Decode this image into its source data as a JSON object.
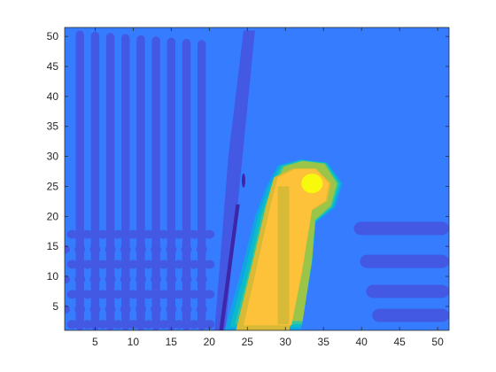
{
  "chart_data": {
    "type": "heatmap",
    "style": "filled-contour",
    "colormap": "parula",
    "grid": false,
    "legend": "none",
    "xlim": [
      1,
      51.5
    ],
    "ylim": [
      1,
      51.5
    ],
    "x_ticks": [
      5,
      10,
      15,
      20,
      25,
      30,
      35,
      40,
      45,
      50
    ],
    "y_ticks": [
      5,
      10,
      15,
      20,
      25,
      30,
      35,
      40,
      45,
      50
    ],
    "background_level": 0.2,
    "level_colors": [
      "#3e26a8",
      "#4359e3",
      "#367cfe",
      "#11a3e6",
      "#0dbac9",
      "#35c69c",
      "#9ac548",
      "#d8ba36",
      "#fdc13a",
      "#f8fa0d"
    ],
    "vertical_stripes_x": [
      3,
      5,
      7,
      9,
      11,
      13,
      15,
      17,
      19
    ],
    "diagonal_band": {
      "x_bottom": 21.5,
      "x_top": 23,
      "y_top": 51
    },
    "mode_lobe": {
      "polygon": [
        [
          22,
          1
        ],
        [
          24,
          10
        ],
        [
          26,
          20
        ],
        [
          27.5,
          25
        ],
        [
          29,
          28.5
        ],
        [
          32,
          29.5
        ],
        [
          35.5,
          29
        ],
        [
          37.5,
          25.5
        ],
        [
          36.5,
          21.5
        ],
        [
          34,
          19
        ],
        [
          33.5,
          12
        ],
        [
          32,
          1
        ]
      ],
      "core_polygon": [
        [
          23.5,
          1
        ],
        [
          26,
          14
        ],
        [
          27.5,
          22
        ],
        [
          28.5,
          26.5
        ],
        [
          31,
          28
        ],
        [
          34,
          28
        ],
        [
          36,
          25.5
        ],
        [
          35.5,
          22.5
        ],
        [
          33.5,
          21
        ],
        [
          32,
          10
        ],
        [
          30.5,
          1
        ]
      ],
      "peak": [
        33.5,
        25.5
      ]
    },
    "right_bands_y": [
      18,
      12.5,
      7.5,
      3.5
    ],
    "right_bands_x": [
      39,
      51.5
    ]
  }
}
